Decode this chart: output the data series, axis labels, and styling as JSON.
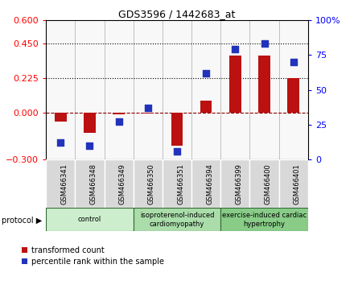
{
  "title": "GDS3596 / 1442683_at",
  "samples": [
    "GSM466341",
    "GSM466348",
    "GSM466349",
    "GSM466350",
    "GSM466351",
    "GSM466394",
    "GSM466399",
    "GSM466400",
    "GSM466401"
  ],
  "transformed_count": [
    -0.055,
    -0.13,
    -0.008,
    -0.003,
    -0.21,
    0.08,
    0.37,
    0.37,
    0.225
  ],
  "percentile_rank": [
    12,
    10,
    27,
    37,
    6,
    62,
    79,
    83,
    70
  ],
  "groups": [
    {
      "label": "control",
      "start": 0,
      "end": 3,
      "color": "#cceecc"
    },
    {
      "label": "isoproterenol-induced\ncardiomyopathy",
      "start": 3,
      "end": 6,
      "color": "#aaddaa"
    },
    {
      "label": "exercise-induced cardiac\nhypertrophy",
      "start": 6,
      "end": 9,
      "color": "#88cc88"
    }
  ],
  "ylim_left": [
    -0.3,
    0.6
  ],
  "ylim_right": [
    0,
    100
  ],
  "yticks_left": [
    -0.3,
    0.0,
    0.225,
    0.45,
    0.6
  ],
  "yticks_right": [
    0,
    25,
    50,
    75,
    100
  ],
  "hlines": [
    0.225,
    0.45
  ],
  "bar_color": "#bb1111",
  "dot_color": "#2233bb",
  "bar_width": 0.4,
  "dot_size": 28,
  "bg_color": "#f0f0f0"
}
